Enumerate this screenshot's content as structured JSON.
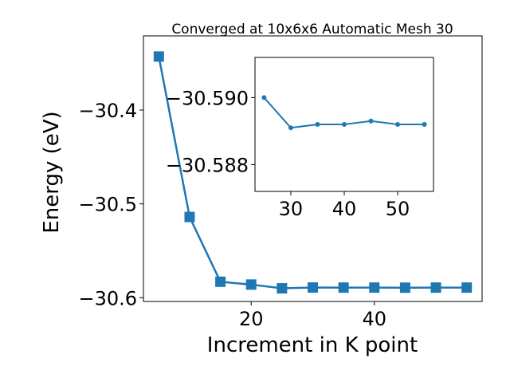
{
  "chart_data": [
    {
      "type": "line",
      "title": "Converged at 10x6x6 Automatic Mesh 30",
      "xlabel": "Increment in K point",
      "ylabel": "Energy (eV)",
      "x": [
        5,
        10,
        15,
        20,
        25,
        30,
        35,
        40,
        45,
        50,
        55
      ],
      "series": [
        {
          "color": "#1f77b4",
          "marker": "square",
          "values": [
            -30.343,
            -30.514,
            -30.583,
            -30.586,
            -30.59,
            -30.5891,
            -30.5892,
            -30.5892,
            -30.5893,
            -30.5892,
            -30.5892
          ]
        }
      ],
      "xlim": [
        2.5,
        57.5
      ],
      "ylim": [
        -30.604,
        -30.321
      ],
      "xticks": [
        20,
        40
      ],
      "yticks": [
        {
          "value": -30.4,
          "label": "−30.4"
        },
        {
          "value": -30.5,
          "label": "−30.5"
        },
        {
          "value": -30.6,
          "label": "−30.6"
        }
      ]
    },
    {
      "type": "line",
      "x": [
        25,
        30,
        35,
        40,
        45,
        50,
        55
      ],
      "series": [
        {
          "color": "#1f77b4",
          "marker": "circle",
          "values": [
            -30.59,
            -30.5891,
            -30.5892,
            -30.5892,
            -30.5893,
            -30.5892,
            -30.5892
          ]
        }
      ],
      "xlim": [
        23.3,
        56.7
      ],
      "ylim": [
        -30.5872,
        -30.5912
      ],
      "xticks": [
        30,
        40,
        50
      ],
      "yticks": [
        {
          "value": -30.59,
          "label": "−30.590"
        },
        {
          "value": -30.588,
          "label": "−30.588"
        }
      ]
    }
  ]
}
